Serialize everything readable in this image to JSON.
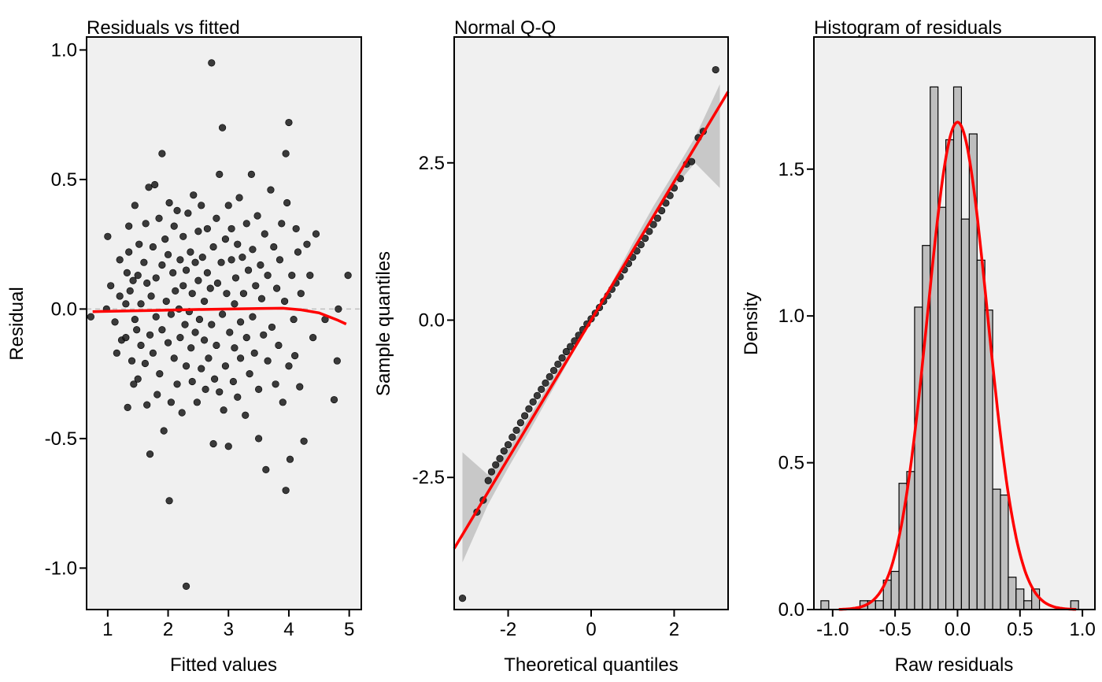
{
  "colors": {
    "panel_bg": "#f0f0f0",
    "points": "#1a1a1a",
    "smooth_line": "#ff0000",
    "band": "#c8c8c8",
    "bars": "#bebebe",
    "zero_line": "#c0c0c0"
  },
  "chart_data": [
    {
      "type": "scatter",
      "title": "Residuals vs fitted",
      "xlabel": "Fitted values",
      "ylabel": "Residual",
      "xlim": [
        0.65,
        5.2
      ],
      "ylim": [
        -1.16,
        1.05
      ],
      "xticks": [
        "1",
        "2",
        "3",
        "4",
        "5"
      ],
      "yticks": [
        "-1.0",
        "-0.5",
        "0.0",
        "0.5",
        "1.0"
      ],
      "grid": false,
      "reference_line_y": 0.0,
      "points": [
        [
          0.72,
          -0.03
        ],
        [
          0.98,
          0.0
        ],
        [
          1.0,
          0.28
        ],
        [
          1.05,
          0.09
        ],
        [
          1.12,
          -0.05
        ],
        [
          1.15,
          -0.17
        ],
        [
          1.2,
          0.19
        ],
        [
          1.2,
          0.05
        ],
        [
          1.23,
          -0.12
        ],
        [
          1.3,
          0.02
        ],
        [
          1.3,
          -0.11
        ],
        [
          1.32,
          0.14
        ],
        [
          1.33,
          -0.38
        ],
        [
          1.35,
          0.22
        ],
        [
          1.35,
          0.32
        ],
        [
          1.37,
          0.07
        ],
        [
          1.4,
          -0.2
        ],
        [
          1.42,
          0.11
        ],
        [
          1.43,
          -0.29
        ],
        [
          1.45,
          0.4
        ],
        [
          1.45,
          -0.04
        ],
        [
          1.48,
          -0.08
        ],
        [
          1.5,
          -0.27
        ],
        [
          1.5,
          0.13
        ],
        [
          1.52,
          0.25
        ],
        [
          1.55,
          0.02
        ],
        [
          1.55,
          -0.14
        ],
        [
          1.6,
          0.18
        ],
        [
          1.62,
          -0.21
        ],
        [
          1.63,
          0.33
        ],
        [
          1.65,
          0.1
        ],
        [
          1.65,
          -0.37
        ],
        [
          1.68,
          0.47
        ],
        [
          1.7,
          -0.1
        ],
        [
          1.7,
          -0.56
        ],
        [
          1.72,
          0.05
        ],
        [
          1.75,
          0.24
        ],
        [
          1.75,
          -0.17
        ],
        [
          1.78,
          0.48
        ],
        [
          1.8,
          0.12
        ],
        [
          1.8,
          -0.03
        ],
        [
          1.82,
          -0.33
        ],
        [
          1.85,
          0.35
        ],
        [
          1.86,
          -0.25
        ],
        [
          1.9,
          0.6
        ],
        [
          1.9,
          0.17
        ],
        [
          1.9,
          -0.08
        ],
        [
          1.93,
          -0.47
        ],
        [
          1.95,
          0.27
        ],
        [
          1.97,
          0.03
        ],
        [
          2.0,
          -0.13
        ],
        [
          2.0,
          0.21
        ],
        [
          2.02,
          0.41
        ],
        [
          2.02,
          -0.74
        ],
        [
          2.05,
          -0.02
        ],
        [
          2.05,
          -0.36
        ],
        [
          2.08,
          0.14
        ],
        [
          2.1,
          0.32
        ],
        [
          2.1,
          -0.19
        ],
        [
          2.12,
          0.07
        ],
        [
          2.15,
          -0.29
        ],
        [
          2.15,
          0.38
        ],
        [
          2.18,
          0.0
        ],
        [
          2.2,
          0.19
        ],
        [
          2.2,
          -0.11
        ],
        [
          2.23,
          -0.4
        ],
        [
          2.25,
          0.28
        ],
        [
          2.25,
          0.09
        ],
        [
          2.28,
          -0.06
        ],
        [
          2.3,
          -1.07
        ],
        [
          2.3,
          0.15
        ],
        [
          2.3,
          -0.22
        ],
        [
          2.33,
          0.37
        ],
        [
          2.35,
          -0.01
        ],
        [
          2.37,
          0.22
        ],
        [
          2.38,
          -0.15
        ],
        [
          2.4,
          -0.28
        ],
        [
          2.4,
          0.06
        ],
        [
          2.42,
          0.44
        ],
        [
          2.45,
          -0.09
        ],
        [
          2.45,
          0.18
        ],
        [
          2.48,
          -0.36
        ],
        [
          2.5,
          0.11
        ],
        [
          2.5,
          0.3
        ],
        [
          2.52,
          -0.04
        ],
        [
          2.55,
          0.4
        ],
        [
          2.55,
          -0.23
        ],
        [
          2.57,
          0.2
        ],
        [
          2.6,
          -0.12
        ],
        [
          2.6,
          0.03
        ],
        [
          2.62,
          -0.31
        ],
        [
          2.65,
          0.14
        ],
        [
          2.65,
          0.31
        ],
        [
          2.67,
          -0.19
        ],
        [
          2.7,
          0.08
        ],
        [
          2.72,
          0.95
        ],
        [
          2.72,
          -0.06
        ],
        [
          2.75,
          0.24
        ],
        [
          2.75,
          -0.52
        ],
        [
          2.77,
          -0.27
        ],
        [
          2.8,
          0.35
        ],
        [
          2.8,
          -0.14
        ],
        [
          2.82,
          0.1
        ],
        [
          2.85,
          -0.32
        ],
        [
          2.85,
          0.52
        ],
        [
          2.88,
          0.18
        ],
        [
          2.9,
          -0.02
        ],
        [
          2.9,
          0.7
        ],
        [
          2.92,
          -0.39
        ],
        [
          2.95,
          0.27
        ],
        [
          2.95,
          -0.22
        ],
        [
          2.97,
          0.06
        ],
        [
          3.0,
          -0.53
        ],
        [
          3.0,
          0.4
        ],
        [
          3.02,
          -0.09
        ],
        [
          3.05,
          0.19
        ],
        [
          3.05,
          0.31
        ],
        [
          3.08,
          -0.28
        ],
        [
          3.1,
          0.02
        ],
        [
          3.1,
          -0.15
        ],
        [
          3.12,
          0.12
        ],
        [
          3.15,
          0.25
        ],
        [
          3.15,
          -0.34
        ],
        [
          3.18,
          0.43
        ],
        [
          3.2,
          -0.05
        ],
        [
          3.2,
          -0.19
        ],
        [
          3.23,
          0.2
        ],
        [
          3.25,
          0.06
        ],
        [
          3.28,
          -0.41
        ],
        [
          3.3,
          0.33
        ],
        [
          3.3,
          -0.11
        ],
        [
          3.33,
          0.15
        ],
        [
          3.35,
          -0.25
        ],
        [
          3.38,
          0.52
        ],
        [
          3.4,
          -0.03
        ],
        [
          3.4,
          0.23
        ],
        [
          3.43,
          -0.17
        ],
        [
          3.45,
          0.09
        ],
        [
          3.48,
          0.36
        ],
        [
          3.5,
          -0.5
        ],
        [
          3.5,
          -0.31
        ],
        [
          3.53,
          0.17
        ],
        [
          3.55,
          0.04
        ],
        [
          3.58,
          -0.1
        ],
        [
          3.6,
          0.29
        ],
        [
          3.62,
          -0.62
        ],
        [
          3.65,
          -0.2
        ],
        [
          3.65,
          0.13
        ],
        [
          3.7,
          0.46
        ],
        [
          3.72,
          -0.07
        ],
        [
          3.75,
          0.24
        ],
        [
          3.78,
          -0.29
        ],
        [
          3.8,
          0.08
        ],
        [
          3.83,
          -0.14
        ],
        [
          3.85,
          0.19
        ],
        [
          3.88,
          0.33
        ],
        [
          3.9,
          -0.36
        ],
        [
          3.93,
          0.03
        ],
        [
          3.95,
          -0.7
        ],
        [
          3.95,
          0.6
        ],
        [
          3.97,
          0.41
        ],
        [
          4.0,
          -0.22
        ],
        [
          4.0,
          0.72
        ],
        [
          4.02,
          -0.58
        ],
        [
          4.05,
          0.13
        ],
        [
          4.08,
          -0.04
        ],
        [
          4.1,
          -0.18
        ],
        [
          4.12,
          0.31
        ],
        [
          4.15,
          0.22
        ],
        [
          4.18,
          -0.3
        ],
        [
          4.2,
          0.06
        ],
        [
          4.25,
          -0.51
        ],
        [
          4.3,
          0.25
        ],
        [
          4.35,
          0.13
        ],
        [
          4.4,
          -0.11
        ],
        [
          4.45,
          0.29
        ],
        [
          4.6,
          -0.04
        ],
        [
          4.75,
          -0.35
        ],
        [
          4.8,
          -0.2
        ],
        [
          4.82,
          0.0
        ],
        [
          4.98,
          0.13
        ]
      ],
      "smooth": {
        "x": [
          0.75,
          1.2,
          1.8,
          2.4,
          3.0,
          3.5,
          3.9,
          4.2,
          4.5,
          4.8,
          4.95
        ],
        "y": [
          -0.01,
          -0.008,
          -0.005,
          -0.002,
          0.0,
          0.002,
          0.003,
          -0.003,
          -0.015,
          -0.042,
          -0.058
        ]
      }
    },
    {
      "type": "scatter",
      "title": "Normal Q-Q",
      "xlabel": "Theoretical quantiles",
      "ylabel": "Sample quantiles",
      "xlim": [
        -3.3,
        3.3
      ],
      "ylim": [
        -4.6,
        4.5
      ],
      "xticks": [
        "-2",
        "0",
        "2"
      ],
      "yticks": [
        "-2.5",
        "0.0",
        "2.5"
      ],
      "grid": false,
      "reference_line": {
        "intercept": 0.0,
        "slope": 1.1
      },
      "band": {
        "x": [
          -3.1,
          -2.5,
          -2.0,
          -1.5,
          -1.0,
          -0.5,
          0.0,
          0.5,
          1.0,
          1.5,
          2.0,
          2.5,
          3.1
        ],
        "lower": [
          -3.85,
          -2.95,
          -2.35,
          -1.78,
          -1.19,
          -0.6,
          -0.02,
          0.56,
          1.11,
          1.62,
          2.1,
          2.5,
          2.1
        ],
        "upper": [
          -2.1,
          -2.45,
          -2.05,
          -1.55,
          -1.0,
          -0.47,
          0.03,
          0.6,
          1.22,
          1.81,
          2.35,
          2.9,
          3.75
        ]
      },
      "points": [
        [
          -3.1,
          -4.42
        ],
        [
          -2.75,
          -3.05
        ],
        [
          -2.6,
          -2.86
        ],
        [
          -2.48,
          -2.55
        ],
        [
          -2.4,
          -2.41
        ],
        [
          -2.3,
          -2.3
        ],
        [
          -2.2,
          -2.2
        ],
        [
          -2.1,
          -2.08
        ],
        [
          -2.0,
          -1.98
        ],
        [
          -1.9,
          -1.86
        ],
        [
          -1.8,
          -1.75
        ],
        [
          -1.7,
          -1.63
        ],
        [
          -1.6,
          -1.52
        ],
        [
          -1.5,
          -1.41
        ],
        [
          -1.4,
          -1.3
        ],
        [
          -1.3,
          -1.2
        ],
        [
          -1.2,
          -1.1
        ],
        [
          -1.1,
          -1.0
        ],
        [
          -1.0,
          -0.9
        ],
        [
          -0.9,
          -0.8
        ],
        [
          -0.8,
          -0.7
        ],
        [
          -0.7,
          -0.6
        ],
        [
          -0.6,
          -0.5
        ],
        [
          -0.5,
          -0.42
        ],
        [
          -0.4,
          -0.33
        ],
        [
          -0.3,
          -0.24
        ],
        [
          -0.2,
          -0.15
        ],
        [
          -0.1,
          -0.06
        ],
        [
          0.0,
          0.02
        ],
        [
          0.1,
          0.11
        ],
        [
          0.2,
          0.2
        ],
        [
          0.3,
          0.3
        ],
        [
          0.4,
          0.39
        ],
        [
          0.5,
          0.49
        ],
        [
          0.6,
          0.59
        ],
        [
          0.7,
          0.69
        ],
        [
          0.8,
          0.8
        ],
        [
          0.9,
          0.9
        ],
        [
          1.0,
          1.0
        ],
        [
          1.1,
          1.1
        ],
        [
          1.2,
          1.2
        ],
        [
          1.3,
          1.3
        ],
        [
          1.4,
          1.41
        ],
        [
          1.5,
          1.52
        ],
        [
          1.6,
          1.62
        ],
        [
          1.7,
          1.74
        ],
        [
          1.8,
          1.86
        ],
        [
          1.9,
          1.98
        ],
        [
          2.0,
          2.1
        ],
        [
          2.15,
          2.25
        ],
        [
          2.3,
          2.48
        ],
        [
          2.42,
          2.52
        ],
        [
          2.58,
          2.9
        ],
        [
          2.7,
          3.0
        ],
        [
          3.0,
          3.98
        ]
      ]
    },
    {
      "type": "bar",
      "title": "Histogram of residuals",
      "xlabel": "Raw residuals",
      "ylabel": "Density",
      "xlim": [
        -1.15,
        1.1
      ],
      "ylim": [
        0,
        1.95
      ],
      "xticks": [
        "-1.0",
        "-0.5",
        "0.0",
        "0.5",
        "1.0"
      ],
      "yticks": [
        "0.0",
        "0.5",
        "1.0",
        "1.5"
      ],
      "grid": false,
      "bin_width": 0.0625,
      "bin_starts": [
        -1.09375,
        -1.03125,
        -0.96875,
        -0.90625,
        -0.84375,
        -0.78125,
        -0.71875,
        -0.65625,
        -0.59375,
        -0.53125,
        -0.46875,
        -0.40625,
        -0.34375,
        -0.28125,
        -0.21875,
        -0.15625,
        -0.09375,
        -0.03125,
        0.03125,
        0.09375,
        0.15625,
        0.21875,
        0.28125,
        0.34375,
        0.40625,
        0.46875,
        0.53125,
        0.59375,
        0.65625,
        0.71875,
        0.78125,
        0.84375,
        0.90625,
        0.96875
      ],
      "densities": [
        0.03,
        0.0,
        0.0,
        0.0,
        0.0,
        0.03,
        0.03,
        0.03,
        0.1,
        0.13,
        0.43,
        0.47,
        1.03,
        1.24,
        1.78,
        1.37,
        1.6,
        1.78,
        1.33,
        1.62,
        1.19,
        1.02,
        0.41,
        0.39,
        0.11,
        0.07,
        0.03,
        0.07,
        0.0,
        0.0,
        0.0,
        0.0,
        0.03,
        0.0
      ],
      "density_curve": {
        "mean": 0.0,
        "sd": 0.24,
        "peak": 1.66
      }
    }
  ]
}
